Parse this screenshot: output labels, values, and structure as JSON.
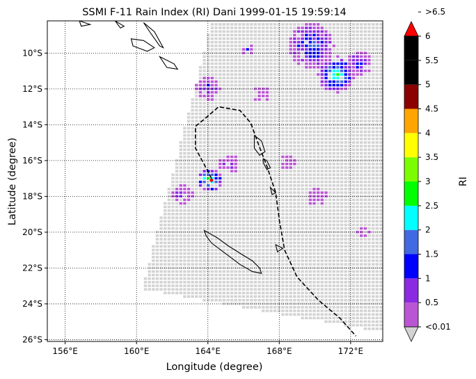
{
  "chart_data": {
    "type": "heatmap",
    "title": "SSMI F-11 Rain Index (RI) Dani 1999-01-15 19:59:14",
    "xlabel": "Longitude (degree)",
    "ylabel": "Latitude (degree)",
    "xlim": [
      155.0,
      173.8
    ],
    "ylim": [
      -26.1,
      -8.2
    ],
    "grid": true,
    "x_ticks": [
      {
        "value": 156,
        "label": "156°E"
      },
      {
        "value": 160,
        "label": "160°E"
      },
      {
        "value": 164,
        "label": "164°E"
      },
      {
        "value": 168,
        "label": "168°E"
      },
      {
        "value": 172,
        "label": "172°E"
      }
    ],
    "y_ticks": [
      {
        "value": -10,
        "label": "10°S"
      },
      {
        "value": -12,
        "label": "12°S"
      },
      {
        "value": -14,
        "label": "14°S"
      },
      {
        "value": -16,
        "label": "16°S"
      },
      {
        "value": -18,
        "label": "18°S"
      },
      {
        "value": -20,
        "label": "20°S"
      },
      {
        "value": -22,
        "label": "22°S"
      },
      {
        "value": -24,
        "label": "24°S"
      },
      {
        "value": -26,
        "label": "26°S"
      }
    ],
    "colorbar": {
      "label": "RI",
      "levels": [
        {
          "label": "<0.01",
          "color": "#d3d3d3"
        },
        {
          "label": "0.5",
          "color": "#ba55d3"
        },
        {
          "label": "1",
          "color": "#8a2be2"
        },
        {
          "label": "1.5",
          "color": "#0000ff"
        },
        {
          "label": "2",
          "color": "#4169e1"
        },
        {
          "label": "2.5",
          "color": "#00ffff"
        },
        {
          "label": "3",
          "color": "#00ff00"
        },
        {
          "label": "3.5",
          "color": "#7cfc00"
        },
        {
          "label": "4",
          "color": "#ffff00"
        },
        {
          "label": "4.5",
          "color": "#ffa500"
        },
        {
          "label": "5",
          "color": "#8b0000"
        },
        {
          "label": "5.5",
          "color": "#000000"
        },
        {
          "label": "6",
          "color": "#000000"
        },
        {
          "label": ">6.5",
          "color": "#ff0000"
        }
      ]
    },
    "colors": {
      "nodata": "#d3d3d3",
      "land": "#000000",
      "track": "#000000",
      "storm_center": "#ff0000"
    },
    "swath_corners": [
      [
        164.2,
        -8.2
      ],
      [
        173.8,
        -8.2
      ],
      [
        173.8,
        -25.6
      ],
      [
        160.3,
        -23.2
      ],
      [
        163.4,
        -11.5
      ]
    ],
    "rain_clusters": [
      {
        "lon": 164.1,
        "lat": -17.1,
        "level": 7,
        "spread": 0.6
      },
      {
        "lon": 171.2,
        "lat": -11.2,
        "level": 6,
        "spread": 0.9
      },
      {
        "lon": 169.8,
        "lat": -9.6,
        "level": 4,
        "spread": 1.1
      },
      {
        "lon": 164.0,
        "lat": -12.0,
        "level": 3,
        "spread": 0.6
      },
      {
        "lon": 172.5,
        "lat": -10.6,
        "level": 3,
        "spread": 0.6
      },
      {
        "lon": 165.2,
        "lat": -16.2,
        "level": 2,
        "spread": 0.5
      },
      {
        "lon": 162.6,
        "lat": -17.9,
        "level": 2,
        "spread": 0.5
      },
      {
        "lon": 167.0,
        "lat": -12.3,
        "level": 2,
        "spread": 0.4
      },
      {
        "lon": 166.2,
        "lat": -9.8,
        "level": 2,
        "spread": 0.3
      },
      {
        "lon": 170.1,
        "lat": -18.0,
        "level": 1,
        "spread": 0.5
      },
      {
        "lon": 172.7,
        "lat": -20.0,
        "level": 1,
        "spread": 0.3
      },
      {
        "lon": 168.5,
        "lat": -16.1,
        "level": 1,
        "spread": 0.4
      }
    ],
    "storm_track": [
      [
        164.2,
        -17.0
      ],
      [
        164.0,
        -16.6
      ],
      [
        163.3,
        -15.3
      ],
      [
        163.3,
        -14.1
      ],
      [
        163.9,
        -13.6
      ],
      [
        164.6,
        -13.0
      ],
      [
        165.8,
        -13.2
      ],
      [
        166.4,
        -13.9
      ],
      [
        166.8,
        -15.0
      ],
      [
        167.3,
        -16.3
      ],
      [
        167.8,
        -17.8
      ],
      [
        168.0,
        -19.3
      ],
      [
        168.3,
        -21.0
      ],
      [
        169.0,
        -22.5
      ],
      [
        170.2,
        -23.8
      ],
      [
        171.4,
        -24.8
      ],
      [
        172.3,
        -25.8
      ]
    ],
    "storm_center": {
      "lon": 164.2,
      "lat": -17.1
    },
    "coastlines": [
      [
        [
          163.8,
          -19.9
        ],
        [
          164.5,
          -20.3
        ],
        [
          165.2,
          -20.8
        ],
        [
          166.0,
          -21.3
        ],
        [
          166.5,
          -21.6
        ],
        [
          166.9,
          -22.0
        ],
        [
          167.0,
          -22.3
        ],
        [
          166.5,
          -22.2
        ],
        [
          165.8,
          -21.8
        ],
        [
          165.0,
          -21.2
        ],
        [
          164.2,
          -20.6
        ],
        [
          163.9,
          -20.2
        ],
        [
          163.8,
          -19.9
        ]
      ],
      [
        [
          166.6,
          -14.6
        ],
        [
          167.0,
          -14.9
        ],
        [
          167.2,
          -15.5
        ],
        [
          166.9,
          -15.7
        ],
        [
          166.6,
          -15.3
        ],
        [
          166.6,
          -14.6
        ]
      ],
      [
        [
          167.1,
          -15.9
        ],
        [
          167.3,
          -16.0
        ],
        [
          167.5,
          -16.4
        ],
        [
          167.3,
          -16.5
        ],
        [
          167.1,
          -16.1
        ],
        [
          167.1,
          -15.9
        ]
      ],
      [
        [
          167.5,
          -17.5
        ],
        [
          167.8,
          -17.8
        ],
        [
          167.6,
          -17.9
        ],
        [
          167.5,
          -17.5
        ]
      ],
      [
        [
          167.8,
          -20.7
        ],
        [
          168.2,
          -20.9
        ],
        [
          167.9,
          -21.1
        ],
        [
          167.8,
          -20.7
        ]
      ],
      [
        [
          159.7,
          -9.2
        ],
        [
          160.4,
          -9.3
        ],
        [
          161.0,
          -9.7
        ],
        [
          160.6,
          -9.9
        ],
        [
          159.8,
          -9.6
        ],
        [
          159.7,
          -9.2
        ]
      ],
      [
        [
          161.3,
          -10.2
        ],
        [
          162.1,
          -10.6
        ],
        [
          162.3,
          -10.9
        ],
        [
          161.7,
          -10.8
        ],
        [
          161.3,
          -10.2
        ]
      ],
      [
        [
          160.4,
          -8.3
        ],
        [
          161.0,
          -8.8
        ],
        [
          161.5,
          -9.7
        ],
        [
          161.3,
          -9.6
        ],
        [
          160.8,
          -8.9
        ],
        [
          160.4,
          -8.3
        ]
      ],
      [
        [
          158.8,
          -8.2
        ],
        [
          159.3,
          -8.5
        ],
        [
          159.1,
          -8.6
        ],
        [
          158.8,
          -8.2
        ]
      ],
      [
        [
          156.8,
          -8.2
        ],
        [
          157.4,
          -8.4
        ],
        [
          156.9,
          -8.5
        ],
        [
          156.8,
          -8.2
        ]
      ]
    ]
  }
}
